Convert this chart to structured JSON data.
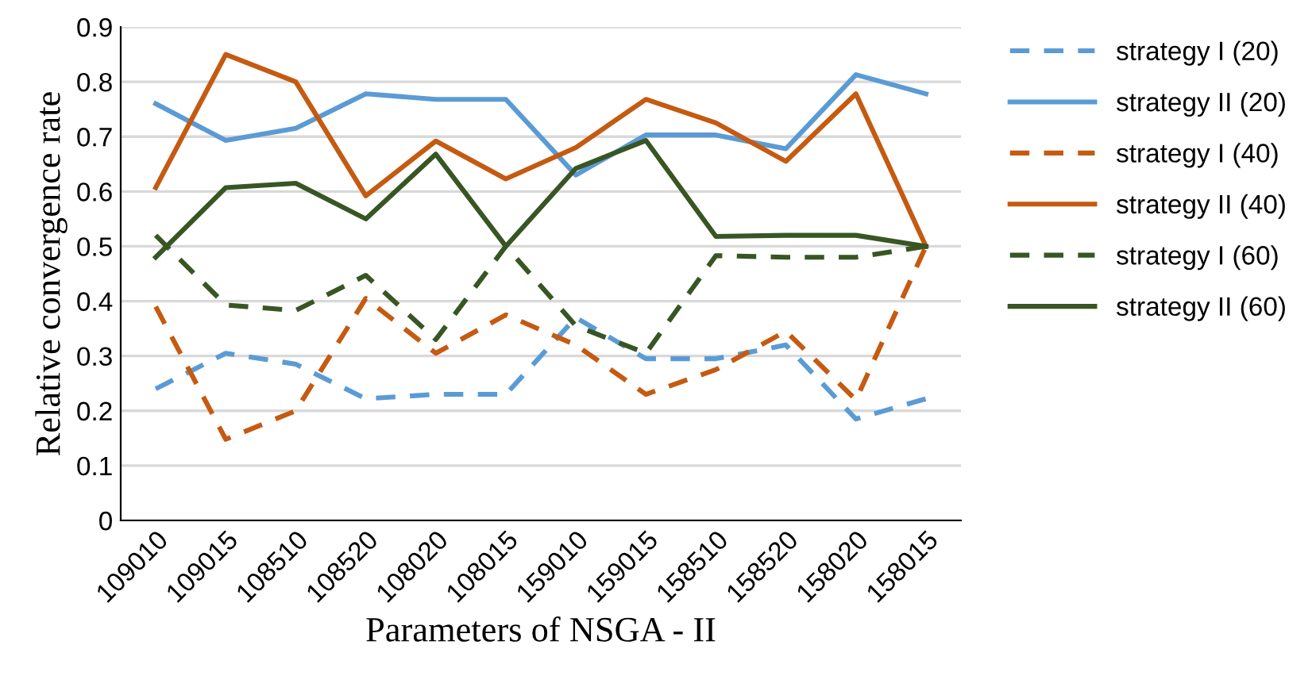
{
  "chart_data": {
    "type": "line",
    "xlabel": "Parameters of NSGA - II",
    "ylabel": "Relative convergence rate",
    "categories": [
      "109010",
      "109015",
      "108510",
      "108520",
      "108020",
      "108015",
      "159010",
      "159015",
      "158510",
      "158520",
      "158020",
      "158015"
    ],
    "ylim": [
      0,
      0.9
    ],
    "yticks": [
      0,
      0.1,
      0.2,
      0.3,
      0.4,
      0.5,
      0.6,
      0.7,
      0.8,
      0.9
    ],
    "grid": "y",
    "legend": "right",
    "marker": "none",
    "series": [
      {
        "name": "strategy I (20)",
        "color": "#5b9bd5",
        "line_style": "dashed",
        "values": [
          0.24,
          0.305,
          0.285,
          0.222,
          0.23,
          0.23,
          0.37,
          0.295,
          0.295,
          0.32,
          0.185,
          0.222
        ]
      },
      {
        "name": "strategy II (20)",
        "color": "#5b9bd5",
        "line_style": "solid",
        "values": [
          0.76,
          0.693,
          0.715,
          0.778,
          0.768,
          0.768,
          0.63,
          0.703,
          0.703,
          0.678,
          0.813,
          0.778
        ]
      },
      {
        "name": "strategy I (40)",
        "color": "#c55a11",
        "line_style": "dashed",
        "values": [
          0.39,
          0.148,
          0.2,
          0.405,
          0.305,
          0.375,
          0.32,
          0.23,
          0.275,
          0.345,
          0.22,
          0.5
        ]
      },
      {
        "name": "strategy II (40)",
        "color": "#c55a11",
        "line_style": "solid",
        "values": [
          0.607,
          0.85,
          0.8,
          0.592,
          0.692,
          0.623,
          0.68,
          0.768,
          0.725,
          0.655,
          0.778,
          0.5
        ]
      },
      {
        "name": "strategy I (60)",
        "color": "#375623",
        "line_style": "dashed",
        "values": [
          0.52,
          0.393,
          0.383,
          0.447,
          0.33,
          0.5,
          0.355,
          0.305,
          0.483,
          0.48,
          0.48,
          0.5
        ]
      },
      {
        "name": "strategy II (60)",
        "color": "#375623",
        "line_style": "solid",
        "values": [
          0.48,
          0.607,
          0.615,
          0.55,
          0.668,
          0.5,
          0.642,
          0.693,
          0.518,
          0.52,
          0.52,
          0.5
        ]
      }
    ]
  }
}
